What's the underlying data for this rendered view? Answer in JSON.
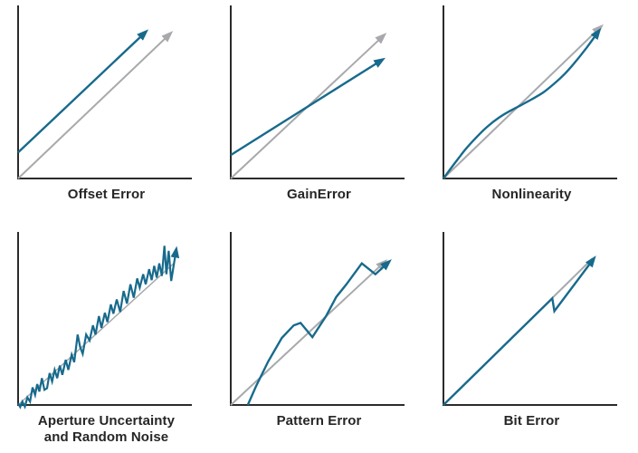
{
  "figure": {
    "kind": "adc-error-types-figure",
    "background": "#ffffff"
  },
  "palette": {
    "signal": "#176a8c",
    "ideal": "#a7a9ac",
    "axis": "#2b2b2b",
    "label": "#262626"
  },
  "chart_data": [
    {
      "type": "line",
      "title": "Offset Error",
      "axes": {
        "xlim": [
          0,
          1
        ],
        "ylim": [
          0,
          1
        ],
        "ticks": "none",
        "grid": false,
        "xlabel": "",
        "ylabel": ""
      },
      "series": [
        {
          "name": "ideal-transfer-line",
          "color": "#a7a9ac",
          "width": 2,
          "arrow": true,
          "smooth": false,
          "points": [
            [
              0,
              0
            ],
            [
              0.89,
              0.86
            ]
          ]
        },
        {
          "name": "actual-transfer-line",
          "color": "#176a8c",
          "width": 2.4,
          "arrow": true,
          "smooth": false,
          "points": [
            [
              0,
              0.155
            ],
            [
              0.745,
              0.87
            ]
          ]
        }
      ]
    },
    {
      "type": "line",
      "title": "GainError",
      "axes": {
        "xlim": [
          0,
          1
        ],
        "ylim": [
          0,
          1
        ],
        "ticks": "none",
        "grid": false,
        "xlabel": "",
        "ylabel": ""
      },
      "series": [
        {
          "name": "ideal-transfer-line",
          "color": "#a7a9ac",
          "width": 2,
          "arrow": true,
          "smooth": false,
          "points": [
            [
              0,
              0
            ],
            [
              0.895,
              0.85
            ]
          ]
        },
        {
          "name": "actual-transfer-line",
          "color": "#176a8c",
          "width": 2.4,
          "arrow": true,
          "smooth": false,
          "points": [
            [
              0,
              0.14
            ],
            [
              0.885,
              0.705
            ]
          ]
        }
      ]
    },
    {
      "type": "line",
      "title": "Nonlinearity",
      "axes": {
        "xlim": [
          0,
          1
        ],
        "ylim": [
          0,
          1
        ],
        "ticks": "none",
        "grid": false,
        "xlabel": "",
        "ylabel": ""
      },
      "series": [
        {
          "name": "ideal-transfer-line",
          "color": "#a7a9ac",
          "width": 2,
          "arrow": true,
          "smooth": false,
          "points": [
            [
              0,
              0
            ],
            [
              0.92,
              0.9
            ]
          ]
        },
        {
          "name": "actual-transfer-line",
          "color": "#176a8c",
          "width": 2.4,
          "arrow": true,
          "smooth": true,
          "points": [
            [
              0,
              0
            ],
            [
              0.065,
              0.089
            ],
            [
              0.13,
              0.174
            ],
            [
              0.195,
              0.247
            ],
            [
              0.26,
              0.311
            ],
            [
              0.325,
              0.362
            ],
            [
              0.39,
              0.402
            ],
            [
              0.455,
              0.437
            ],
            [
              0.52,
              0.473
            ],
            [
              0.585,
              0.512
            ],
            [
              0.65,
              0.565
            ],
            [
              0.715,
              0.626
            ],
            [
              0.78,
              0.701
            ],
            [
              0.845,
              0.785
            ],
            [
              0.91,
              0.875
            ]
          ]
        }
      ]
    },
    {
      "type": "line",
      "title": "Aperture Uncertainty\nand Random Noise",
      "axes": {
        "xlim": [
          0,
          1
        ],
        "ylim": [
          0,
          1
        ],
        "ticks": "none",
        "grid": false,
        "xlabel": "",
        "ylabel": ""
      },
      "series": [
        {
          "name": "ideal-transfer-line",
          "color": "#a7a9ac",
          "width": 1.5,
          "arrow": false,
          "smooth": false,
          "points": [
            [
              0,
              0
            ],
            [
              0.92,
              0.85
            ]
          ]
        },
        {
          "name": "noisy-signal-line",
          "color": "#176a8c",
          "width": 2.2,
          "arrow": true,
          "smooth": false,
          "points": [
            [
              0,
              0.01
            ],
            [
              0.012,
              -0.012
            ],
            [
              0.025,
              0.02
            ],
            [
              0.04,
              -0.01
            ],
            [
              0.055,
              0.045
            ],
            [
              0.07,
              0.02
            ],
            [
              0.085,
              0.105
            ],
            [
              0.1,
              0.06
            ],
            [
              0.112,
              0.125
            ],
            [
              0.125,
              0.08
            ],
            [
              0.14,
              0.16
            ],
            [
              0.155,
              0.09
            ],
            [
              0.17,
              0.1
            ],
            [
              0.185,
              0.19
            ],
            [
              0.2,
              0.14
            ],
            [
              0.215,
              0.21
            ],
            [
              0.23,
              0.16
            ],
            [
              0.245,
              0.235
            ],
            [
              0.26,
              0.18
            ],
            [
              0.28,
              0.27
            ],
            [
              0.295,
              0.21
            ],
            [
              0.315,
              0.3
            ],
            [
              0.33,
              0.255
            ],
            [
              0.35,
              0.42
            ],
            [
              0.365,
              0.345
            ],
            [
              0.38,
              0.305
            ],
            [
              0.4,
              0.42
            ],
            [
              0.42,
              0.385
            ],
            [
              0.44,
              0.475
            ],
            [
              0.455,
              0.42
            ],
            [
              0.475,
              0.53
            ],
            [
              0.49,
              0.46
            ],
            [
              0.51,
              0.55
            ],
            [
              0.525,
              0.495
            ],
            [
              0.545,
              0.6
            ],
            [
              0.56,
              0.545
            ],
            [
              0.58,
              0.63
            ],
            [
              0.6,
              0.555
            ],
            [
              0.62,
              0.68
            ],
            [
              0.64,
              0.605
            ],
            [
              0.66,
              0.72
            ],
            [
              0.68,
              0.64
            ],
            [
              0.7,
              0.755
            ],
            [
              0.715,
              0.7
            ],
            [
              0.735,
              0.78
            ],
            [
              0.75,
              0.72
            ],
            [
              0.77,
              0.81
            ],
            [
              0.785,
              0.745
            ],
            [
              0.8,
              0.83
            ],
            [
              0.815,
              0.76
            ],
            [
              0.83,
              0.845
            ],
            [
              0.845,
              0.77
            ],
            [
              0.86,
              0.95
            ],
            [
              0.872,
              0.78
            ],
            [
              0.885,
              0.92
            ],
            [
              0.9,
              0.74
            ],
            [
              0.928,
              0.92
            ]
          ]
        }
      ]
    },
    {
      "type": "line",
      "title": "Pattern Error",
      "axes": {
        "xlim": [
          0,
          1
        ],
        "ylim": [
          0,
          1
        ],
        "ticks": "none",
        "grid": false,
        "xlabel": "",
        "ylabel": ""
      },
      "series": [
        {
          "name": "ideal-transfer-line",
          "color": "#a7a9ac",
          "width": 2,
          "arrow": true,
          "smooth": false,
          "points": [
            [
              0,
              0
            ],
            [
              0.9,
              0.85
            ]
          ]
        },
        {
          "name": "actual-transfer-line",
          "color": "#176a8c",
          "width": 2.4,
          "arrow": true,
          "smooth": false,
          "points": [
            [
              0.1,
              0
            ],
            [
              0.15,
              0.115
            ],
            [
              0.22,
              0.26
            ],
            [
              0.3,
              0.4
            ],
            [
              0.37,
              0.475
            ],
            [
              0.41,
              0.49
            ],
            [
              0.48,
              0.405
            ],
            [
              0.56,
              0.53
            ],
            [
              0.62,
              0.645
            ],
            [
              0.68,
              0.72
            ],
            [
              0.77,
              0.845
            ],
            [
              0.85,
              0.78
            ],
            [
              0.925,
              0.85
            ]
          ]
        }
      ]
    },
    {
      "type": "line",
      "title": "Bit Error",
      "axes": {
        "xlim": [
          0,
          1
        ],
        "ylim": [
          0,
          1
        ],
        "ticks": "none",
        "grid": false,
        "xlabel": "",
        "ylabel": ""
      },
      "series": [
        {
          "name": "ideal-transfer-line",
          "color": "#a7a9ac",
          "width": 2,
          "arrow": false,
          "smooth": false,
          "points": [
            [
              0,
              0
            ],
            [
              0.875,
              0.873
            ]
          ]
        },
        {
          "name": "actual-transfer-line",
          "color": "#176a8c",
          "width": 2.4,
          "arrow": true,
          "smooth": false,
          "points": [
            [
              0,
              0
            ],
            [
              0.64,
              0.636
            ],
            [
              0.652,
              0.56
            ],
            [
              0.88,
              0.868
            ]
          ]
        }
      ]
    }
  ]
}
